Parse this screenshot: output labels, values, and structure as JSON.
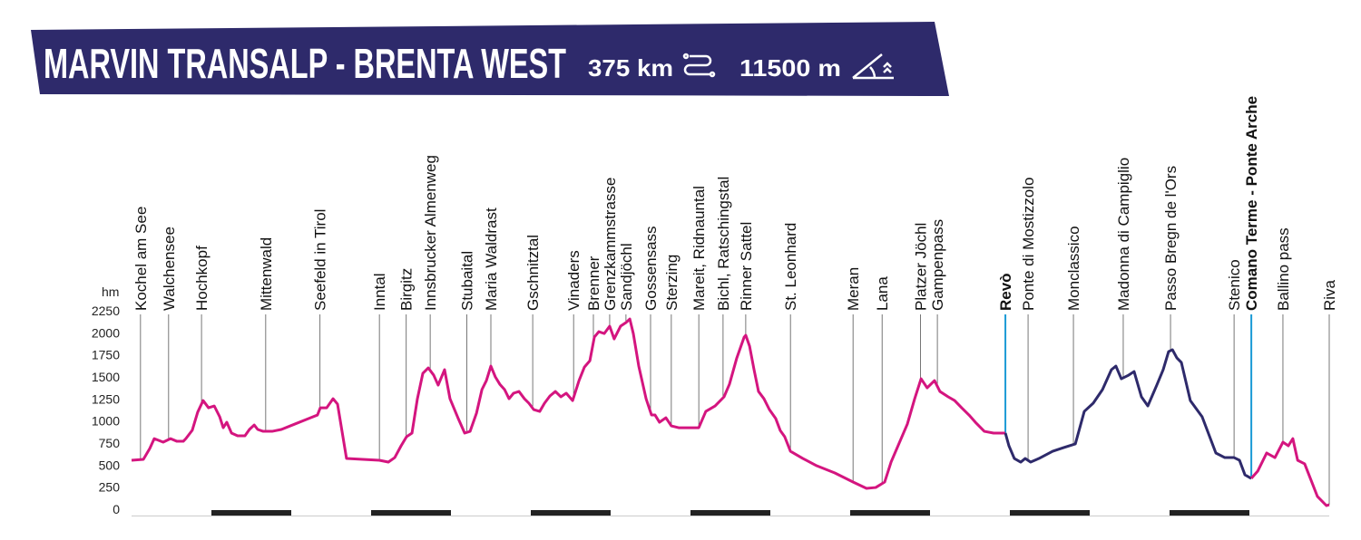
{
  "chart_data": {
    "type": "line",
    "title": "MARVIN TRANSALP - BRENTA WEST",
    "distance": "375 km",
    "elevation_gain": "11500 m",
    "y_label": "hm",
    "xlim": [
      0,
      375
    ],
    "ylim": [
      0,
      2250
    ],
    "yticks": [
      0,
      250,
      500,
      750,
      1000,
      1250,
      1500,
      1750,
      2000,
      2250
    ],
    "series": [
      {
        "color": "#d4157f",
        "x": [
          0,
          3.7,
          5.7,
          7.1,
          9.9,
          12.2,
          14.2,
          16.2,
          17,
          19,
          20.7,
          22.4,
          24.1,
          25.9,
          27.6,
          28.7,
          29.8,
          31.3,
          33.2,
          35.5,
          36.9,
          38.4,
          39.5,
          41.2,
          44,
          46.9,
          51.1,
          55.4,
          58.2,
          59.1,
          61.1,
          63.1,
          64.5,
          67.3,
          72.4,
          77.6,
          80.4,
          82.4,
          84.4,
          86.1,
          87.8,
          89.5,
          91.2,
          92.9,
          94.6,
          96,
          98,
          99.7,
          102.3,
          104.3,
          106,
          108,
          109.7,
          111.1,
          112.5,
          113.9,
          115.3,
          116.8,
          118.2,
          119.6,
          121.3,
          123,
          124.4,
          125.9,
          127.8,
          129.3,
          131,
          132.7,
          134.4,
          136.1,
          138.1,
          140.1,
          141.8,
          143.5,
          144.9,
          146.3,
          148,
          149.7,
          151.1,
          153.1,
          154.8,
          156,
          157.1,
          158.8,
          161.1,
          162.8,
          163.9,
          165.3,
          167.3,
          169,
          171.3,
          174.1,
          177.6,
          179.8,
          182.7,
          185.5,
          187.2,
          189.5,
          191.8,
          192.3,
          193.5,
          194.9,
          196.3,
          198,
          199.7,
          201.7,
          203.1,
          204.5,
          206.3,
          210.2,
          214.5,
          220.2,
          225.9,
          230.1,
          233,
          235.8,
          237.8,
          242.9,
          245.2,
          247.2,
          249.1,
          251.4,
          253.1,
          255.7,
          257.7,
          259.9,
          262.2,
          264.2,
          267,
          269.9,
          273,
          273.6
        ],
        "values": [
          555,
          565,
          688,
          800,
          760,
          800,
          770,
          770,
          800,
          895,
          1100,
          1232,
          1150,
          1170,
          1048,
          924,
          986,
          863,
          832,
          832,
          904,
          955,
          904,
          883,
          883,
          904,
          965,
          1027,
          1068,
          1150,
          1150,
          1253,
          1191,
          575,
          565,
          555,
          534,
          585,
          719,
          822,
          863,
          1253,
          1540,
          1602,
          1520,
          1407,
          1582,
          1253,
          1027,
          863,
          883,
          1089,
          1356,
          1458,
          1623,
          1500,
          1417,
          1356,
          1253,
          1315,
          1335,
          1253,
          1202,
          1130,
          1109,
          1202,
          1284,
          1335,
          1274,
          1315,
          1232,
          1458,
          1612,
          1684,
          1951,
          2013,
          1992,
          2075,
          1931,
          2075,
          2116,
          2157,
          1992,
          1623,
          1253,
          1068,
          1068,
          986,
          1037,
          945,
          924,
          924,
          924,
          1109,
          1171,
          1274,
          1417,
          1715,
          1951,
          1972,
          1849,
          1582,
          1335,
          1253,
          1130,
          1027,
          893,
          822,
          657,
          575,
          493,
          411,
          308,
          236,
          246,
          308,
          534,
          965,
          1253,
          1479,
          1376,
          1458,
          1335,
          1274,
          1232,
          1150,
          1068,
          986,
          883,
          863,
          863,
          863
        ]
      },
      {
        "color": "#2e2a6b",
        "x": [
          273.6,
          274.7,
          276.4,
          278.4,
          279.8,
          281.5,
          284.1,
          288.4,
          291.8,
          295.5,
          298.3,
          301.1,
          304,
          306.8,
          308.2,
          309.9,
          312.2,
          313.9,
          316.2,
          318.2,
          321,
          323,
          324.7,
          325.9,
          327.3,
          328.7,
          331.5,
          335.2,
          339.5,
          342.3,
          345.2,
          346.9,
          348.6,
          350.6
        ],
        "values": [
          863,
          719,
          575,
          534,
          575,
          534,
          575,
          657,
          698,
          740,
          1109,
          1202,
          1356,
          1582,
          1623,
          1479,
          1520,
          1561,
          1274,
          1171,
          1407,
          1582,
          1787,
          1808,
          1715,
          1664,
          1232,
          1048,
          637,
          585,
          585,
          555,
          390,
          349
        ]
      },
      {
        "color": "#d4157f",
        "x": [
          350.6,
          352.6,
          355.4,
          358,
          360.5,
          362.2,
          363.6,
          365.1,
          367.3,
          369.3,
          371.3,
          374.1,
          375
        ],
        "values": [
          349,
          431,
          637,
          585,
          760,
          719,
          800,
          555,
          514,
          329,
          144,
          41,
          51
        ]
      }
    ],
    "waypoints": [
      {
        "name": "Kochel am See",
        "km": 2.8
      },
      {
        "name": "Walchensee",
        "km": 11.6
      },
      {
        "name": "Hochkopf",
        "km": 21.9
      },
      {
        "name": "Mittenwald",
        "km": 42
      },
      {
        "name": "Seefeld in Tirol",
        "km": 59
      },
      {
        "name": "Inntal",
        "km": 77.6
      },
      {
        "name": "Birgitz",
        "km": 86
      },
      {
        "name": "Innsbrucker Almenweg",
        "km": 93.5
      },
      {
        "name": "Stubaital",
        "km": 105
      },
      {
        "name": "Maria Waldrast",
        "km": 112.5
      },
      {
        "name": "Gschnitztal",
        "km": 125.6
      },
      {
        "name": "Vinaders",
        "km": 138.4
      },
      {
        "name": "Brenner",
        "km": 144.6
      },
      {
        "name": "Grenzkammstrasse",
        "km": 149.7
      },
      {
        "name": "Sandjöchl",
        "km": 154.8
      },
      {
        "name": "Gossensass",
        "km": 162.5
      },
      {
        "name": "Sterzing",
        "km": 169
      },
      {
        "name": "Mareit, Ridnauntal",
        "km": 177.6
      },
      {
        "name": "Bichl, Ratschingstal",
        "km": 185.2
      },
      {
        "name": "Rinner Sattel",
        "km": 192.3
      },
      {
        "name": "St. Leonhard",
        "km": 206.3
      },
      {
        "name": "Meran",
        "km": 225.9
      },
      {
        "name": "Lana",
        "km": 235
      },
      {
        "name": "Platzer Jöchl",
        "km": 247
      },
      {
        "name": "Gampenpass",
        "km": 252.3
      },
      {
        "name": "Revò",
        "km": 273.6,
        "color": "#1a9ad6"
      },
      {
        "name": "Ponte di Mostizzolo",
        "km": 280.7
      },
      {
        "name": "Monclassico",
        "km": 294.9
      },
      {
        "name": "Madonna di Campiglio",
        "km": 310.5
      },
      {
        "name": "Passo Bregn de l'Ors",
        "km": 325.3
      },
      {
        "name": "Stenico",
        "km": 345.2
      },
      {
        "name": "Comano Terme - Ponte Arche",
        "km": 350.6,
        "color": "#1a9ad6"
      },
      {
        "name": "Ballino pass",
        "km": 360.5
      },
      {
        "name": "Riva",
        "km": 375
      }
    ]
  }
}
